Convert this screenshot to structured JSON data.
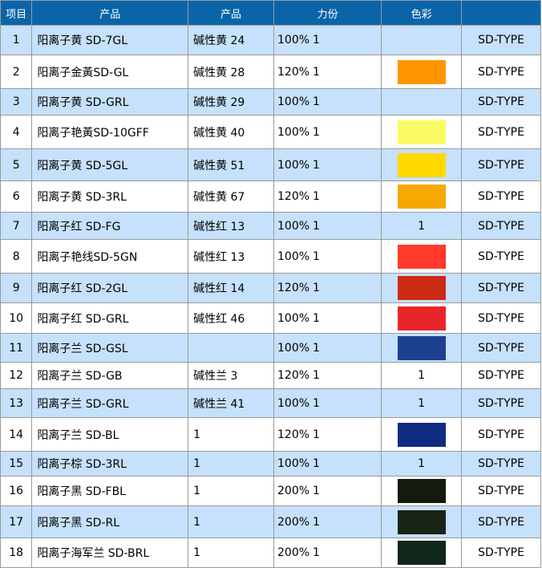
{
  "header": {
    "col_index": "项目",
    "col_name": "产品",
    "col_ci": "产品",
    "col_strength": "力份",
    "col_color": "色彩",
    "col_type": ""
  },
  "rows": [
    {
      "index": "1",
      "name": "阳离子黄 SD-7GL",
      "ci": "碱性黄 24",
      "strength": "100%",
      "qty": "1",
      "color": "",
      "color_text": "",
      "type": "SD-TYPE"
    },
    {
      "index": "2",
      "name": "阳离子金黃SD-GL",
      "ci": "碱性黄 28",
      "strength": "120%",
      "qty": "1",
      "color": "#ff9600",
      "color_text": "",
      "type": "SD-TYPE"
    },
    {
      "index": "3",
      "name": "阳离子黄 SD-GRL",
      "ci": "碱性黄 29",
      "strength": "100%",
      "qty": "1",
      "color": "",
      "color_text": "",
      "type": "SD-TYPE"
    },
    {
      "index": "4",
      "name": "阳离子艳黃SD-10GFF",
      "ci": "碱性黄 40",
      "strength": "100%",
      "qty": "1",
      "color": "#fafa64",
      "color_text": "",
      "type": "SD-TYPE"
    },
    {
      "index": "5",
      "name": "阳离子黄 SD-5GL",
      "ci": "碱性黄 51",
      "strength": "100%",
      "qty": "1",
      "color": "#ffd800",
      "color_text": "",
      "type": "SD-TYPE"
    },
    {
      "index": "6",
      "name": "阳离子黄 SD-3RL",
      "ci": "碱性黄 67",
      "strength": "120%",
      "qty": "1",
      "color": "#f5a800",
      "color_text": "",
      "type": "SD-TYPE"
    },
    {
      "index": "7",
      "name": "阳离子红 SD-FG",
      "ci": "碱性红 13",
      "strength": "100%",
      "qty": "1",
      "color": "",
      "color_text": "1",
      "type": "SD-TYPE"
    },
    {
      "index": "8",
      "name": "阳离子艳线SD-5GN",
      "ci": "碱性红 13",
      "strength": "100%",
      "qty": "1",
      "color": "#ff3a2a",
      "color_text": "",
      "type": "SD-TYPE"
    },
    {
      "index": "9",
      "name": "阳离子红 SD-2GL",
      "ci": "碱性红 14",
      "strength": "120%",
      "qty": "1",
      "color": "#cc2a14",
      "color_text": "",
      "type": "SD-TYPE"
    },
    {
      "index": "10",
      "name": "阳离子红 SD-GRL",
      "ci": "碱性红 46",
      "strength": "100%",
      "qty": "1",
      "color": "#e8262a",
      "color_text": "",
      "type": "SD-TYPE"
    },
    {
      "index": "11",
      "name": "阳离子兰 SD-GSL",
      "ci": "",
      "strength": "100%",
      "qty": "1",
      "color": "#1c4090",
      "color_text": "",
      "type": "SD-TYPE"
    },
    {
      "index": "12",
      "name": "阳离子兰 SD-GB",
      "ci": "碱性兰 3",
      "strength": "120%",
      "qty": "1",
      "color": "",
      "color_text": "1",
      "type": "SD-TYPE"
    },
    {
      "index": "13",
      "name": "阳离子兰 SD-GRL",
      "ci": "碱性兰 41",
      "strength": "100%",
      "qty": "1",
      "color": "",
      "color_text": "1",
      "type": "SD-TYPE"
    },
    {
      "index": "14",
      "name": "阳离子兰 SD-BL",
      "ci": "1",
      "strength": "120%",
      "qty": "1",
      "color": "#102c80",
      "color_text": "",
      "type": "SD-TYPE"
    },
    {
      "index": "15",
      "name": "阳离子棕 SD-3RL",
      "ci": "1",
      "strength": "100%",
      "qty": "1",
      "color": "",
      "color_text": "1",
      "type": "SD-TYPE"
    },
    {
      "index": "16",
      "name": "阳离子黑 SD-FBL",
      "ci": "1",
      "strength": "200%",
      "qty": "1",
      "color": "#141a0e",
      "color_text": "",
      "type": "SD-TYPE"
    },
    {
      "index": "17",
      "name": "阳离子黑 SD-RL",
      "ci": "1",
      "strength": "200%",
      "qty": "1",
      "color": "#1a2414",
      "color_text": "",
      "type": "SD-TYPE"
    },
    {
      "index": "18",
      "name": "阳离子海军兰 SD-BRL",
      "ci": "1",
      "strength": "200%",
      "qty": "1",
      "color": "#10261a",
      "color_text": "",
      "type": "SD-TYPE"
    }
  ]
}
